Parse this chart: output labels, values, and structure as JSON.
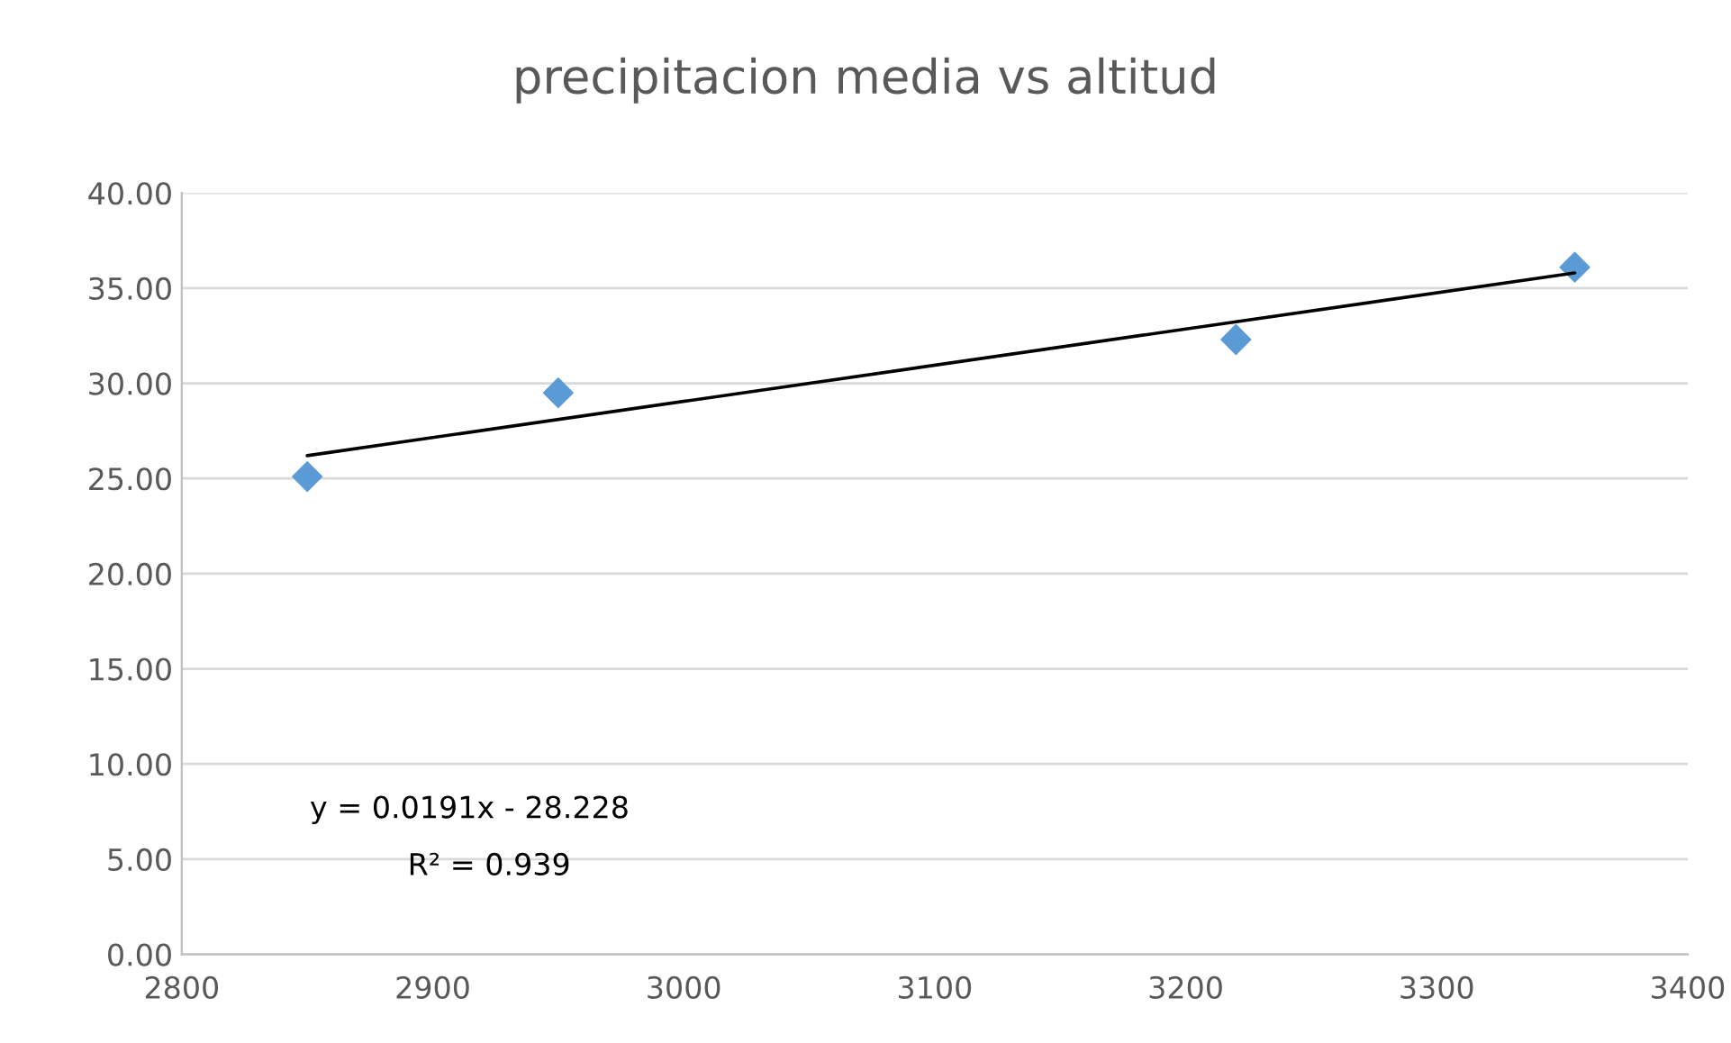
{
  "chart_data": {
    "type": "scatter",
    "title": "precipitacion media vs altitud",
    "x": [
      2850,
      2950,
      3220,
      3355
    ],
    "series": [
      {
        "color": "#5b9bd5",
        "marker": "diamond",
        "values": [
          25.1,
          29.5,
          32.3,
          36.1
        ]
      },
      {
        "type": "line",
        "color": "#000000",
        "x": [
          2850,
          3355
        ],
        "values": [
          26.2,
          35.8
        ],
        "marker": "none",
        "line_style": "solid"
      }
    ],
    "xlim": [
      2800,
      3400
    ],
    "xticks": [
      2800,
      2900,
      3000,
      3100,
      3200,
      3300,
      3400
    ],
    "ylim": [
      0,
      40
    ],
    "yticks": [
      {
        "value": 0,
        "label": "0.00"
      },
      {
        "value": 5,
        "label": "5.00"
      },
      {
        "value": 10,
        "label": "10.00"
      },
      {
        "value": 15,
        "label": "15.00"
      },
      {
        "value": 20,
        "label": "20.00"
      },
      {
        "value": 25,
        "label": "25.00"
      },
      {
        "value": 30,
        "label": "30.00"
      },
      {
        "value": 35,
        "label": "35.00"
      },
      {
        "value": 40,
        "label": "40.00"
      }
    ],
    "grid": "y",
    "annotations": [
      "y = 0.0191x - 28.228",
      "R² = 0.939"
    ]
  }
}
